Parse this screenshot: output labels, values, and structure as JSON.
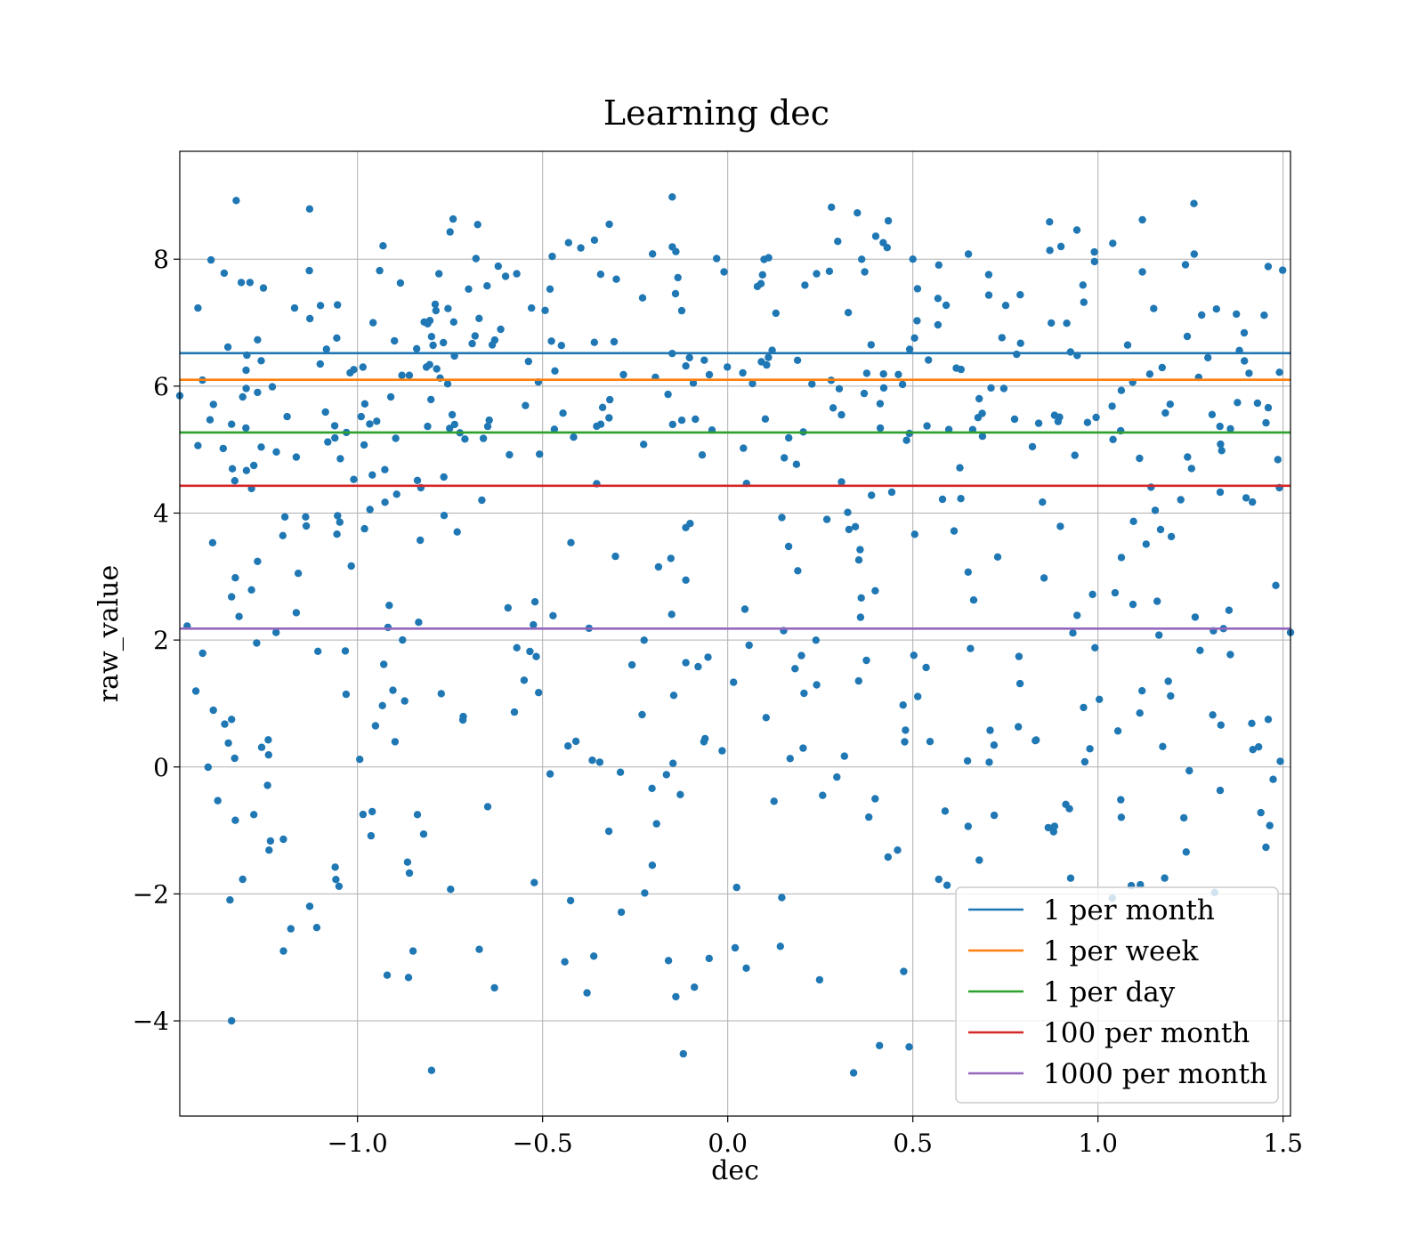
{
  "chart_data": {
    "type": "scatter",
    "title": "Learning dec",
    "xlabel": "dec",
    "ylabel": "raw_value",
    "xlim": [
      -1.48,
      1.52
    ],
    "ylim": [
      -5.5,
      9.7
    ],
    "xticks": [
      -1.0,
      -0.5,
      0.0,
      0.5,
      1.0,
      1.5
    ],
    "xtick_labels": [
      "−1.0",
      "−0.5",
      "0.0",
      "0.5",
      "1.0",
      "1.5"
    ],
    "yticks": [
      -4,
      -2,
      0,
      2,
      4,
      6,
      8
    ],
    "ytick_labels": [
      "−4",
      "−2",
      "0",
      "2",
      "4",
      "6",
      "8"
    ],
    "grid": true,
    "legend_position": "lower-right",
    "point_color": "#1f77b4",
    "point_count_estimate": 600,
    "hlines": [
      {
        "name": "1 per month",
        "y": 6.52,
        "color": "#1f77b4"
      },
      {
        "name": "1 per week",
        "y": 6.1,
        "color": "#ff7f0e"
      },
      {
        "name": "1 per day",
        "y": 5.27,
        "color": "#2ca02c"
      },
      {
        "name": "100 per month",
        "y": 4.43,
        "color": "#d62728"
      },
      {
        "name": "1000 per month",
        "y": 2.18,
        "color": "#9467bd"
      }
    ],
    "points_sample": [
      [
        -1.48,
        5.85
      ],
      [
        -1.46,
        2.22
      ],
      [
        -1.36,
        7.78
      ],
      [
        -1.34,
        5.4
      ],
      [
        -1.33,
        2.98
      ],
      [
        -1.34,
        2.68
      ],
      [
        -1.32,
        2.37
      ],
      [
        -1.31,
        5.83
      ],
      [
        -1.3,
        4.67
      ],
      [
        -1.28,
        4.75
      ],
      [
        -1.27,
        6.73
      ],
      [
        -1.26,
        6.4
      ],
      [
        -1.26,
        5.04
      ],
      [
        -1.23,
        5.99
      ],
      [
        -1.22,
        2.12
      ],
      [
        -1.19,
        5.52
      ],
      [
        -1.17,
        7.23
      ],
      [
        -1.16,
        3.05
      ],
      [
        -1.14,
        3.94
      ],
      [
        -1.13,
        7.82
      ],
      [
        -1.1,
        7.27
      ],
      [
        -1.34,
        0.75
      ],
      [
        -1.33,
        -0.84
      ],
      [
        -1.31,
        -1.77
      ],
      [
        -1.34,
        -4.0
      ],
      [
        -1.28,
        -0.75
      ],
      [
        -1.24,
        0.19
      ],
      [
        -1.2,
        -2.9
      ],
      [
        -1.18,
        -2.55
      ],
      [
        -1.11,
        -2.53
      ],
      [
        -1.05,
        -1.88
      ],
      [
        -1.03,
        5.27
      ],
      [
        -1.02,
        6.21
      ],
      [
        -1.01,
        6.26
      ],
      [
        -1.01,
        4.53
      ],
      [
        -0.99,
        5.52
      ],
      [
        -0.96,
        4.6
      ],
      [
        -0.94,
        7.82
      ],
      [
        -0.91,
        5.83
      ],
      [
        -0.88,
        6.17
      ],
      [
        -0.86,
        6.17
      ],
      [
        -0.84,
        6.59
      ],
      [
        -0.82,
        7.01
      ],
      [
        -0.8,
        6.78
      ],
      [
        -0.79,
        7.29
      ],
      [
        -0.78,
        7.77
      ],
      [
        -0.75,
        8.43
      ],
      [
        -0.74,
        7.01
      ],
      [
        -0.7,
        7.53
      ],
      [
        -0.69,
        6.67
      ],
      [
        -0.68,
        8.01
      ],
      [
        -0.65,
        7.58
      ],
      [
        -0.62,
        7.89
      ],
      [
        -0.6,
        7.73
      ],
      [
        -0.57,
        7.77
      ],
      [
        -0.53,
        7.23
      ],
      [
        -0.48,
        7.53
      ],
      [
        -0.43,
        8.26
      ],
      [
        -0.36,
        8.3
      ],
      [
        -0.32,
        8.55
      ],
      [
        -0.23,
        7.39
      ],
      [
        -0.15,
        8.98
      ],
      [
        -0.14,
        8.12
      ],
      [
        -0.03,
        8.01
      ],
      [
        -0.01,
        7.8
      ],
      [
        0.08,
        7.57
      ],
      [
        0.13,
        7.15
      ],
      [
        0.24,
        7.77
      ],
      [
        0.28,
        8.82
      ],
      [
        0.35,
        8.73
      ],
      [
        0.37,
        7.8
      ],
      [
        0.42,
        8.26
      ],
      [
        0.5,
        8.0
      ],
      [
        0.65,
        8.08
      ],
      [
        0.79,
        7.44
      ],
      [
        0.87,
        8.14
      ],
      [
        0.9,
        8.2
      ],
      [
        1.04,
        8.25
      ],
      [
        1.12,
        8.62
      ],
      [
        1.12,
        7.8
      ],
      [
        1.26,
        8.08
      ],
      [
        1.28,
        7.12
      ],
      [
        -0.8,
        -4.78
      ],
      [
        -0.38,
        -3.56
      ],
      [
        -0.12,
        -4.52
      ],
      [
        -0.14,
        -3.62
      ],
      [
        0.34,
        -4.82
      ],
      [
        0.41,
        -4.39
      ],
      [
        0.49,
        -4.41
      ],
      [
        -0.63,
        -3.48
      ],
      [
        -0.92,
        -3.28
      ],
      [
        -0.85,
        -2.9
      ],
      [
        -0.44,
        -3.07
      ],
      [
        -0.16,
        -3.05
      ],
      [
        -0.09,
        -3.47
      ],
      [
        0.02,
        -2.85
      ],
      [
        0.05,
        -3.17
      ],
      [
        0.57,
        -1.77
      ],
      [
        0.88,
        -1.02
      ],
      [
        1.09,
        -1.87
      ],
      [
        1.18,
        -1.75
      ],
      [
        1.44,
        -0.72
      ],
      [
        1.46,
        0.75
      ],
      [
        1.52,
        2.12
      ],
      [
        1.49,
        4.4
      ],
      [
        1.46,
        5.66
      ],
      [
        1.4,
        4.24
      ],
      [
        1.33,
        4.33
      ],
      [
        1.31,
        0.82
      ],
      [
        1.33,
        -0.37
      ],
      [
        1.19,
        1.35
      ],
      [
        1.16,
        2.61
      ],
      [
        1.13,
        3.51
      ],
      [
        1.14,
        6.19
      ]
    ]
  },
  "legend": {
    "items": [
      {
        "label": "1 per month",
        "color": "#1f77b4"
      },
      {
        "label": "1 per week",
        "color": "#ff7f0e"
      },
      {
        "label": "1 per day",
        "color": "#2ca02c"
      },
      {
        "label": "100 per month",
        "color": "#d62728"
      },
      {
        "label": "1000 per month",
        "color": "#9467bd"
      }
    ]
  }
}
